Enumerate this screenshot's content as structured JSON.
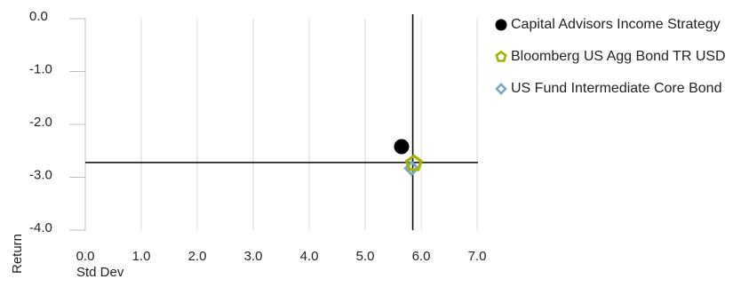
{
  "chart_data": {
    "type": "scatter",
    "xlabel": "Std Dev",
    "ylabel": "Return",
    "xlim": [
      0,
      7
    ],
    "ylim": [
      -4,
      0
    ],
    "x_ticks": [
      "0.0",
      "1.0",
      "2.0",
      "3.0",
      "4.0",
      "5.0",
      "6.0",
      "7.0"
    ],
    "y_ticks": [
      "0.0",
      "-1.0",
      "-2.0",
      "-3.0",
      "-4.0"
    ],
    "grid": "vertical",
    "legend_position": "right",
    "reference_lines": {
      "x": 5.85,
      "y": -2.72
    },
    "series": [
      {
        "name": "Capital Advisors Income Strategy",
        "marker": "circle",
        "color": "#000000",
        "points": [
          {
            "x": 5.65,
            "y": -2.42
          }
        ]
      },
      {
        "name": "Bloomberg US Agg Bond TR USD",
        "marker": "pentagon",
        "color": "#a3b300",
        "points": [
          {
            "x": 5.87,
            "y": -2.74
          }
        ]
      },
      {
        "name": "US Fund Intermediate Core Bond",
        "marker": "diamond",
        "color": "#7aa7c7",
        "points": [
          {
            "x": 5.83,
            "y": -2.83
          }
        ]
      }
    ]
  }
}
